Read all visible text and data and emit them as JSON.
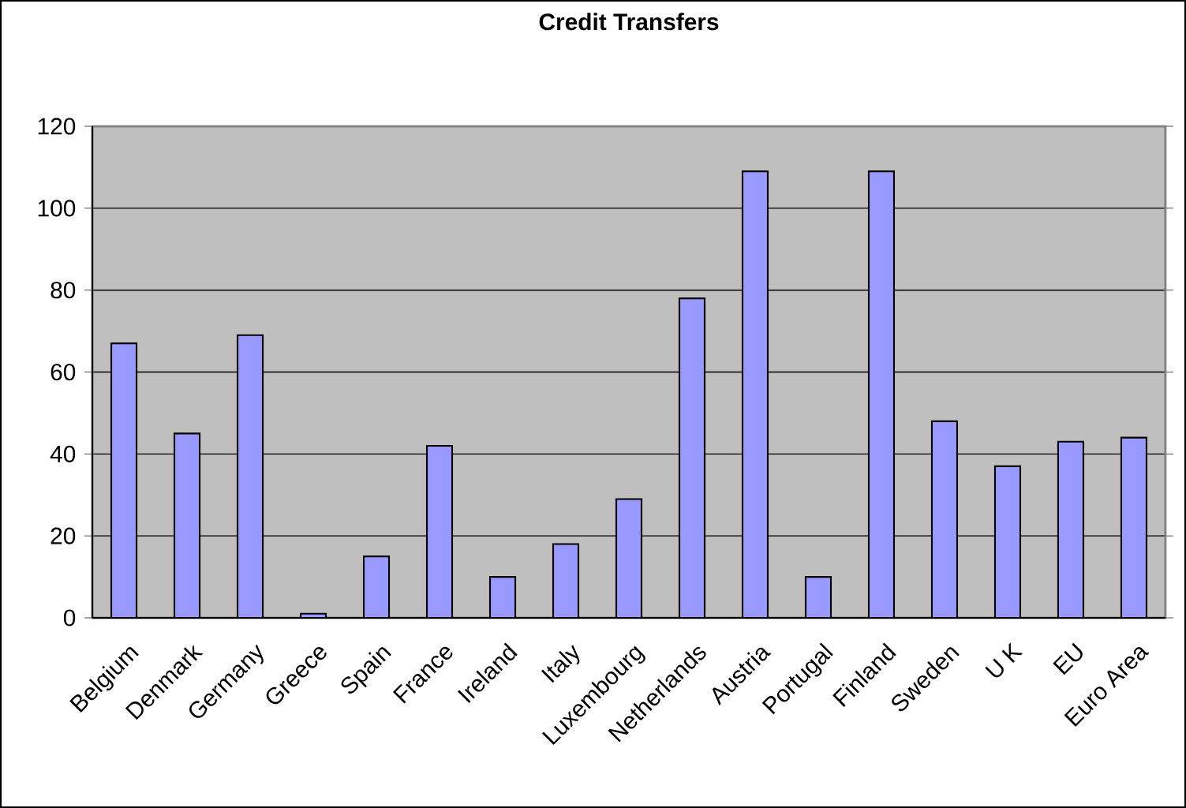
{
  "chart_data": {
    "type": "bar",
    "title": "Credit  Transfers",
    "categories": [
      "Belgium",
      "Denmark",
      "Germany",
      "Greece",
      "Spain",
      "France",
      "Ireland",
      "Italy",
      "Luxembourg",
      "Netherlands",
      "Austria",
      "Portugal",
      "Finland",
      "Sweden",
      "U K",
      "EU",
      "Euro Area"
    ],
    "values": [
      67,
      45,
      69,
      1,
      15,
      42,
      10,
      18,
      29,
      78,
      109,
      10,
      109,
      48,
      37,
      43,
      44
    ],
    "color": "#9999ff",
    "ylim": [
      0,
      120
    ],
    "yticks": [
      0,
      20,
      40,
      60,
      80,
      100,
      120
    ],
    "grid": "y"
  }
}
